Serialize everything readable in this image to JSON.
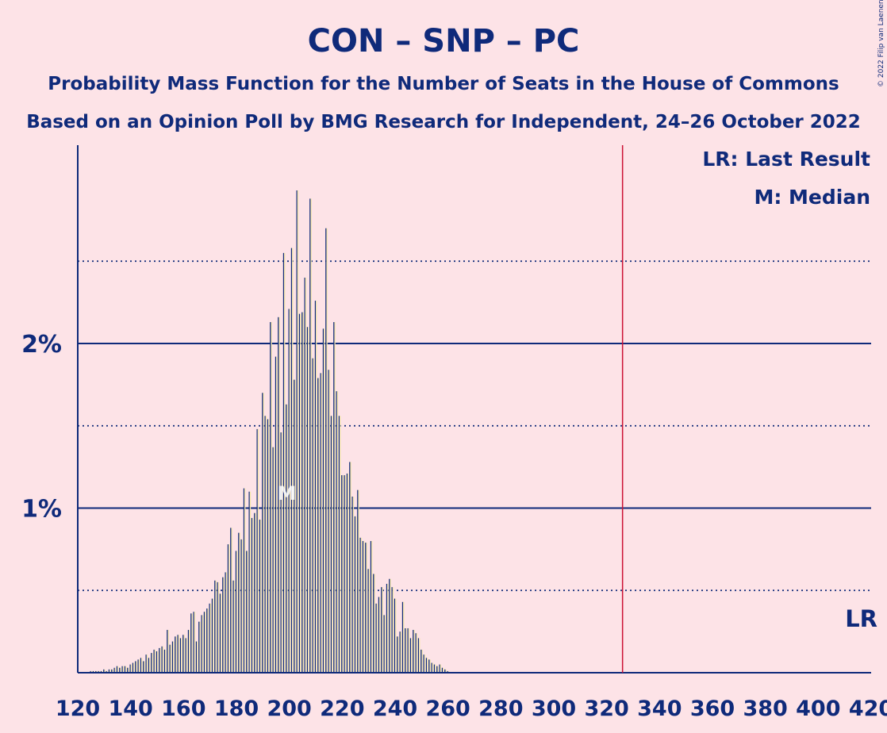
{
  "title": "CON – SNP – PC",
  "subtitle1": "Probability Mass Function for the Number of Seats in the House of Commons",
  "subtitle2": "Based on an Opinion Poll by BMG Research for Independent, 24–26 October 2022",
  "copyright": "© 2022 Filip van Laenen",
  "legend": {
    "last_result": "LR: Last Result",
    "median": "M: Median"
  },
  "lr_label": "LR",
  "median_marker": "M",
  "colors": {
    "background": "#fde3e7",
    "text": "#0f2a7a",
    "bar_blue": "#0f2a7a",
    "bar_yellow": "#f5e7a9",
    "last_result_line": "#cc1133"
  },
  "chart_data": {
    "type": "bar",
    "xlabel": "",
    "ylabel": "",
    "xlim": [
      120,
      420
    ],
    "ylim": [
      0,
      0.032
    ],
    "x_ticks": [
      "120",
      "140",
      "160",
      "180",
      "200",
      "220",
      "240",
      "260",
      "280",
      "300",
      "320",
      "340",
      "360",
      "380",
      "400",
      "420"
    ],
    "y_ticks": [
      {
        "value": 0.01,
        "label": "1%"
      },
      {
        "value": 0.02,
        "label": "2%"
      }
    ],
    "y_dotted": [
      0.005,
      0.015,
      0.025
    ],
    "last_result": 326,
    "median": 199,
    "series": [
      {
        "x": [
          125,
          126,
          127,
          128,
          129,
          130,
          131,
          132,
          133,
          134,
          135,
          136,
          137,
          138,
          139,
          140,
          141,
          142,
          143,
          144,
          145,
          146,
          147,
          148,
          149,
          150,
          151,
          152,
          153,
          154,
          155,
          156,
          157,
          158,
          159,
          160,
          161,
          162,
          163,
          164,
          165,
          166,
          167,
          168,
          169,
          170,
          171,
          172,
          173,
          174,
          175,
          176,
          177,
          178,
          179,
          180,
          181,
          182,
          183,
          184,
          185,
          186,
          187,
          188,
          189,
          190,
          191,
          192,
          193,
          194,
          195,
          196,
          197,
          198,
          199,
          200,
          201,
          202,
          203,
          204,
          205,
          206,
          207,
          208,
          209,
          210,
          211,
          212,
          213,
          214,
          215,
          216,
          217,
          218,
          219,
          220,
          221,
          222,
          223,
          224,
          225,
          226,
          227,
          228,
          229,
          230,
          231,
          232,
          233,
          234,
          235,
          236,
          237,
          238,
          239,
          240,
          241,
          242,
          243,
          244,
          245,
          246,
          247,
          248,
          249,
          250,
          251,
          252,
          253,
          254,
          255,
          256,
          257,
          258,
          259,
          260
        ],
        "values": [
          0.0001,
          0.0001,
          0.0001,
          0.0001,
          0.0001,
          0.0002,
          0.0001,
          0.0002,
          0.0002,
          0.0003,
          0.0004,
          0.0003,
          0.0004,
          0.0004,
          0.0003,
          0.0005,
          0.0006,
          0.0007,
          0.0008,
          0.0009,
          0.0007,
          0.0011,
          0.0009,
          0.0012,
          0.0014,
          0.0013,
          0.0015,
          0.0016,
          0.0014,
          0.0026,
          0.0017,
          0.0019,
          0.0022,
          0.0023,
          0.0021,
          0.0023,
          0.0021,
          0.0026,
          0.0036,
          0.0037,
          0.0019,
          0.0031,
          0.0035,
          0.0037,
          0.0039,
          0.0042,
          0.0045,
          0.0056,
          0.0055,
          0.0048,
          0.0058,
          0.0061,
          0.0078,
          0.0088,
          0.0056,
          0.0074,
          0.0085,
          0.0081,
          0.0112,
          0.0074,
          0.011,
          0.0094,
          0.0097,
          0.0148,
          0.0093,
          0.017,
          0.0156,
          0.0154,
          0.0213,
          0.0137,
          0.0192,
          0.0216,
          0.0146,
          0.0255,
          0.0163,
          0.0221,
          0.0258,
          0.0178,
          0.0293,
          0.0218,
          0.0219,
          0.024,
          0.021,
          0.0288,
          0.0191,
          0.0226,
          0.0179,
          0.0182,
          0.0209,
          0.027,
          0.0184,
          0.0156,
          0.0213,
          0.0171,
          0.0156,
          0.012,
          0.012,
          0.0121,
          0.0128,
          0.0107,
          0.0095,
          0.0111,
          0.0082,
          0.008,
          0.0079,
          0.0063,
          0.008,
          0.006,
          0.0042,
          0.0046,
          0.0052,
          0.0035,
          0.0054,
          0.0057,
          0.0052,
          0.0045,
          0.0022,
          0.0025,
          0.0043,
          0.0027,
          0.0027,
          0.0021,
          0.0026,
          0.0024,
          0.0021,
          0.0014,
          0.0011,
          0.0009,
          0.0008,
          0.0006,
          0.0005,
          0.0004,
          0.0005,
          0.0003,
          0.0002,
          0.0001
        ]
      }
    ]
  }
}
